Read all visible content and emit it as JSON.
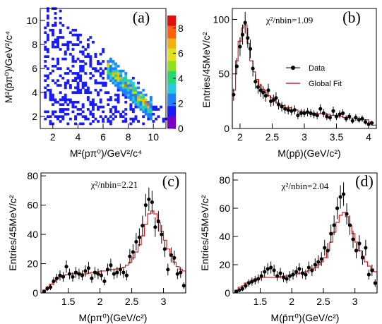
{
  "chart_data": [
    {
      "type": "heatmap",
      "panel_label": "(a)",
      "xlabel": "M²(pπ⁰)/GeV²/c⁴",
      "ylabel": "M²(p̄π⁰)/GeV²/c⁴",
      "xlim": [
        1.0,
        11.0
      ],
      "ylim": [
        1.0,
        11.0
      ],
      "xticks": [
        2,
        4,
        6,
        8,
        10
      ],
      "yticks": [
        2,
        4,
        6,
        8,
        10
      ],
      "zlim": [
        0,
        9
      ],
      "zticks": [
        0,
        2,
        4,
        6,
        8
      ],
      "grid": false
    },
    {
      "type": "line",
      "panel_label": "(b)",
      "annotation": "χ²/nbin=1.09",
      "xlabel": "M(pp̄)(GeV/c²)",
      "ylabel": "Entries/45MeV/c²",
      "xlim": [
        1.88,
        4.12
      ],
      "ylim": [
        0,
        110
      ],
      "xticks": [
        2,
        2.5,
        3,
        3.5,
        4
      ],
      "yticks": [
        0,
        50,
        100
      ],
      "legend": {
        "placement": "right",
        "entries": [
          "Data",
          "Global Fit"
        ]
      },
      "series": [
        {
          "name": "Data",
          "kind": "points",
          "x": [
            1.9,
            1.95,
            2.0,
            2.04,
            2.08,
            2.12,
            2.16,
            2.2,
            2.24,
            2.28,
            2.32,
            2.36,
            2.4,
            2.44,
            2.48,
            2.52,
            2.56,
            2.6,
            2.65,
            2.7,
            2.75,
            2.8,
            2.85,
            2.9,
            2.95,
            3.0,
            3.05,
            3.1,
            3.15,
            3.2,
            3.25,
            3.3,
            3.35,
            3.4,
            3.45,
            3.5,
            3.55,
            3.6,
            3.65,
            3.7,
            3.75,
            3.8,
            3.85,
            3.9,
            3.95,
            4.0,
            4.05
          ],
          "y": [
            31,
            57,
            75,
            86,
            97,
            83,
            73,
            55,
            43,
            38,
            35,
            33,
            30,
            35,
            25,
            26,
            28,
            22,
            20,
            18,
            17,
            16,
            17,
            12,
            14,
            14,
            15,
            14,
            13,
            12,
            18,
            14,
            11,
            10,
            16,
            11,
            13,
            14,
            9,
            11,
            7,
            10,
            8,
            9,
            6,
            4,
            5
          ]
        },
        {
          "name": "Global Fit",
          "kind": "step",
          "x": [
            1.88,
            1.93,
            1.97,
            2.02,
            2.06,
            2.11,
            2.15,
            2.2,
            2.24,
            2.29,
            2.33,
            2.38,
            2.42,
            2.47,
            2.51,
            2.56,
            2.6,
            2.65,
            2.7,
            2.8,
            2.9,
            3.0,
            3.1,
            3.2,
            3.3,
            3.4,
            3.5,
            3.6,
            3.7,
            3.8,
            3.9,
            4.0,
            4.05
          ],
          "y": [
            35,
            62,
            80,
            92,
            95,
            78,
            62,
            52,
            45,
            40,
            36,
            33,
            30,
            28,
            26,
            24,
            22,
            21,
            19,
            17,
            16,
            15,
            14,
            13.5,
            13,
            12,
            11,
            10,
            9.5,
            9,
            8,
            6,
            3
          ]
        }
      ]
    },
    {
      "type": "line",
      "panel_label": "(c)",
      "annotation": "χ²/nbin=2.21",
      "xlabel": "M(pπ⁰)(GeV/c²)",
      "ylabel": "Entries/45MeV/c²",
      "xlim": [
        1.07,
        3.35
      ],
      "ylim": [
        0,
        82
      ],
      "xticks": [
        1.5,
        2,
        2.5,
        3
      ],
      "yticks": [
        0,
        20,
        40,
        60,
        80
      ],
      "series": [
        {
          "name": "Data",
          "kind": "points",
          "x": [
            1.12,
            1.17,
            1.22,
            1.27,
            1.32,
            1.37,
            1.42,
            1.47,
            1.52,
            1.57,
            1.62,
            1.67,
            1.72,
            1.77,
            1.82,
            1.87,
            1.92,
            1.97,
            2.02,
            2.07,
            2.12,
            2.17,
            2.22,
            2.27,
            2.32,
            2.37,
            2.42,
            2.47,
            2.52,
            2.57,
            2.62,
            2.67,
            2.72,
            2.77,
            2.82,
            2.87,
            2.92,
            2.97,
            3.02,
            3.07,
            3.12,
            3.17,
            3.22,
            3.27,
            3.32
          ],
          "y": [
            1,
            3,
            4,
            8,
            10,
            12,
            11,
            18,
            13,
            11,
            14,
            13,
            12,
            15,
            17,
            10,
            14,
            13,
            12,
            8,
            16,
            19,
            13,
            14,
            16,
            14,
            12,
            25,
            28,
            35,
            38,
            46,
            60,
            64,
            62,
            45,
            49,
            40,
            30,
            16,
            26,
            24,
            13,
            14,
            5
          ]
        },
        {
          "name": "Global Fit",
          "kind": "step",
          "x": [
            1.07,
            1.1,
            1.15,
            1.2,
            1.25,
            1.3,
            1.35,
            1.4,
            1.45,
            1.5,
            1.55,
            1.6,
            1.65,
            1.7,
            1.75,
            1.8,
            1.85,
            1.9,
            1.95,
            2.0,
            2.05,
            2.1,
            2.15,
            2.2,
            2.25,
            2.3,
            2.35,
            2.4,
            2.45,
            2.5,
            2.55,
            2.6,
            2.65,
            2.7,
            2.75,
            2.8,
            2.85,
            2.9,
            2.95,
            3.0,
            3.05,
            3.1,
            3.15,
            3.2,
            3.25,
            3.3,
            3.35
          ],
          "y": [
            0,
            2,
            4,
            6,
            8,
            10,
            11,
            12,
            12.5,
            13,
            13,
            13,
            13.5,
            13,
            13,
            13.5,
            14,
            14,
            14.5,
            15,
            15,
            15.5,
            16,
            16,
            16.5,
            17,
            17.5,
            19,
            21,
            24,
            28,
            33,
            39,
            47,
            54,
            56,
            54,
            48,
            42,
            36,
            30,
            25,
            21,
            18,
            16,
            15,
            3
          ]
        }
      ]
    },
    {
      "type": "line",
      "panel_label": "(d)",
      "annotation": "χ²/nbin=2.04",
      "xlabel": "M(p̄π⁰)(GeV/c²)",
      "ylabel": "Entries/45MeV/c²",
      "xlim": [
        1.07,
        3.35
      ],
      "ylim": [
        0,
        85
      ],
      "xticks": [
        1.5,
        2,
        2.5,
        3
      ],
      "yticks": [
        0,
        20,
        40,
        60,
        80
      ],
      "series": [
        {
          "name": "Data",
          "kind": "points",
          "x": [
            1.12,
            1.17,
            1.22,
            1.27,
            1.32,
            1.37,
            1.42,
            1.47,
            1.52,
            1.57,
            1.62,
            1.67,
            1.72,
            1.77,
            1.82,
            1.87,
            1.92,
            1.97,
            2.02,
            2.07,
            2.12,
            2.17,
            2.22,
            2.27,
            2.32,
            2.37,
            2.42,
            2.47,
            2.52,
            2.57,
            2.62,
            2.67,
            2.72,
            2.77,
            2.82,
            2.87,
            2.92,
            2.97,
            3.02,
            3.07,
            3.12,
            3.17,
            3.22,
            3.27,
            3.32
          ],
          "y": [
            1,
            2,
            3,
            5,
            7,
            8,
            9,
            10,
            12,
            15,
            17,
            18,
            16,
            12,
            14,
            11,
            10,
            12,
            13,
            15,
            17,
            14,
            13,
            18,
            16,
            20,
            22,
            24,
            32,
            30,
            42,
            48,
            60,
            68,
            70,
            56,
            48,
            38,
            30,
            35,
            25,
            32,
            13,
            16,
            7
          ]
        },
        {
          "name": "Global Fit",
          "kind": "step",
          "x": [
            1.07,
            1.1,
            1.15,
            1.2,
            1.25,
            1.3,
            1.35,
            1.4,
            1.45,
            1.5,
            1.55,
            1.6,
            1.65,
            1.7,
            1.75,
            1.8,
            1.85,
            1.9,
            1.95,
            2.0,
            2.05,
            2.1,
            2.15,
            2.2,
            2.25,
            2.3,
            2.35,
            2.4,
            2.45,
            2.5,
            2.55,
            2.6,
            2.65,
            2.7,
            2.75,
            2.8,
            2.85,
            2.9,
            2.95,
            3.0,
            3.05,
            3.1,
            3.15,
            3.2,
            3.25,
            3.3,
            3.35
          ],
          "y": [
            0,
            2,
            4,
            5,
            7,
            8,
            9,
            10,
            10.5,
            11,
            11,
            11,
            11,
            11,
            11,
            11.5,
            12,
            12,
            12.5,
            13,
            13.5,
            14,
            14.5,
            15,
            16,
            17,
            18,
            20,
            22,
            25,
            30,
            36,
            43,
            50,
            55,
            57,
            54,
            48,
            42,
            36,
            30,
            26,
            22,
            19,
            17,
            15,
            3
          ]
        }
      ]
    }
  ]
}
